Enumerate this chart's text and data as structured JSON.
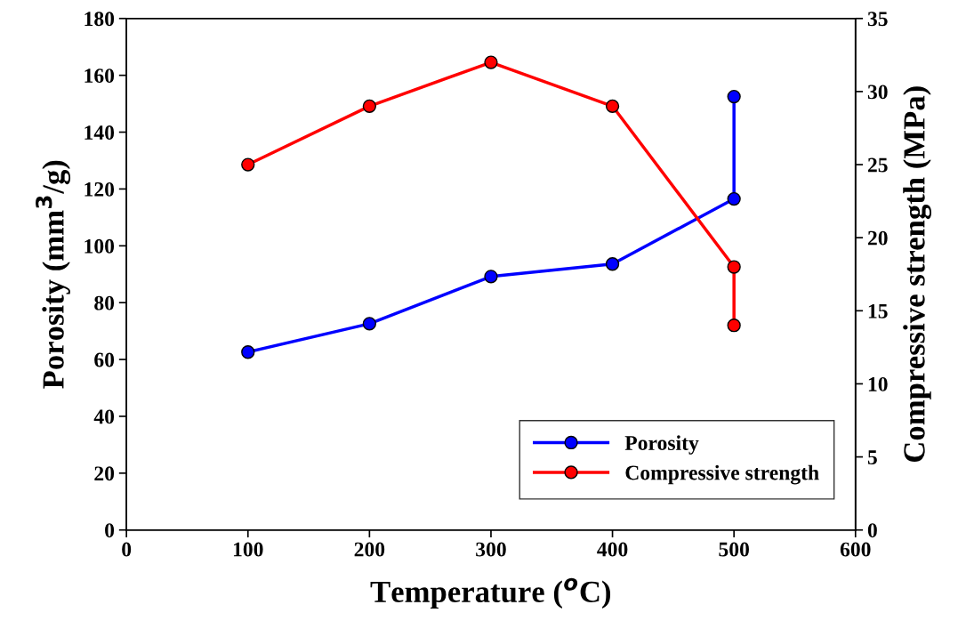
{
  "chart_data": {
    "type": "line",
    "xlabel": "Temperature ($^{o}$C)",
    "ylabel": "Porosity (mm$^{3}$/g)",
    "y2label": "Compressive strength (MPa)",
    "xlim": [
      0,
      600
    ],
    "xticks": [
      0,
      100,
      200,
      300,
      400,
      500,
      600
    ],
    "ylim": [
      0,
      180
    ],
    "yticks": [
      0,
      20,
      40,
      60,
      80,
      100,
      120,
      140,
      160,
      180
    ],
    "y2lim": [
      0,
      35
    ],
    "y2ticks": [
      0,
      5,
      10,
      15,
      20,
      25,
      30,
      35
    ],
    "marker": "circle",
    "line_style": "solid",
    "legend": "bottom right",
    "grid": false,
    "series": [
      {
        "name": "Porosity",
        "color": "#0000ff",
        "x": [
          100,
          200,
          300,
          400,
          500,
          500
        ],
        "values": [
          62.6,
          72.6,
          89.2,
          93.6,
          116.5,
          152.5
        ]
      },
      {
        "name": "Compressive strength",
        "color": "#ff0000",
        "axis": "y2",
        "x": [
          100,
          200,
          300,
          400,
          500,
          500
        ],
        "values": [
          25,
          29,
          32,
          29,
          18,
          14
        ]
      }
    ]
  }
}
